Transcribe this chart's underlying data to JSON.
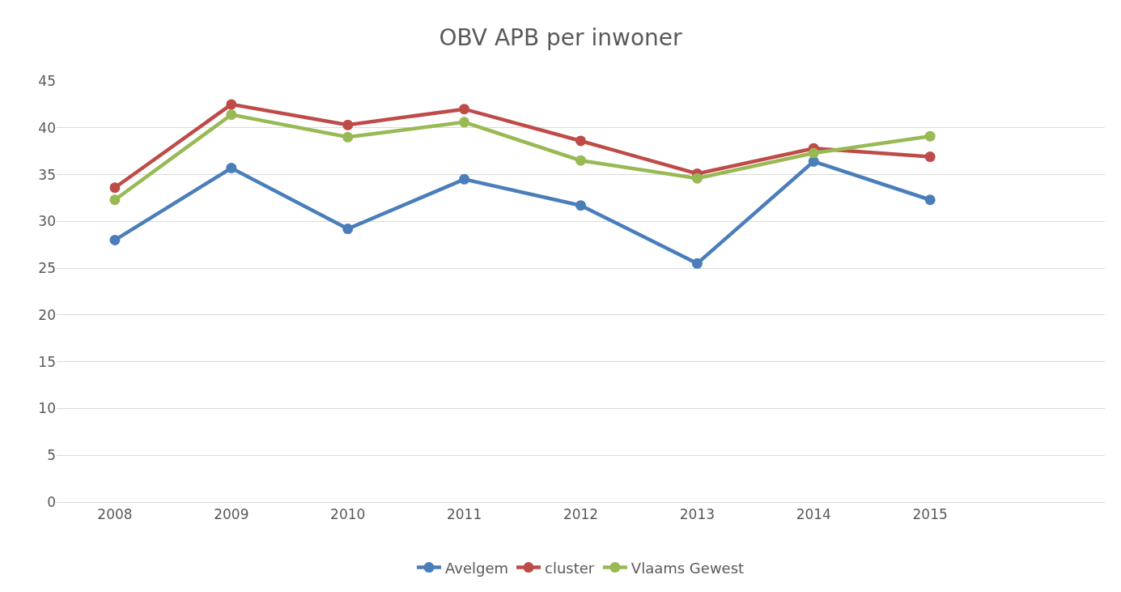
{
  "chart_data": {
    "type": "line",
    "title": "OBV APB per inwoner",
    "categories": [
      "2008",
      "2009",
      "2010",
      "2011",
      "2012",
      "2013",
      "2014",
      "2015",
      null
    ],
    "series": [
      {
        "name": "Avelgem",
        "color": "#4a7ebb",
        "values": [
          28.0,
          35.7,
          29.2,
          34.5,
          31.7,
          25.5,
          36.4,
          32.3,
          null
        ]
      },
      {
        "name": "cluster",
        "color": "#be4b48",
        "values": [
          33.6,
          42.5,
          40.3,
          42.0,
          38.6,
          35.1,
          37.8,
          36.9,
          null
        ]
      },
      {
        "name": "Vlaams Gewest",
        "color": "#98b954",
        "values": [
          32.3,
          41.4,
          39.0,
          40.6,
          36.5,
          34.6,
          37.3,
          39.1,
          null
        ]
      }
    ],
    "ylim": [
      0,
      45
    ],
    "yticks": [
      0,
      5,
      10,
      15,
      20,
      25,
      30,
      35,
      40,
      45
    ],
    "grid": "y",
    "legend": "bottom",
    "marker": "circle",
    "line_style": "solid"
  }
}
